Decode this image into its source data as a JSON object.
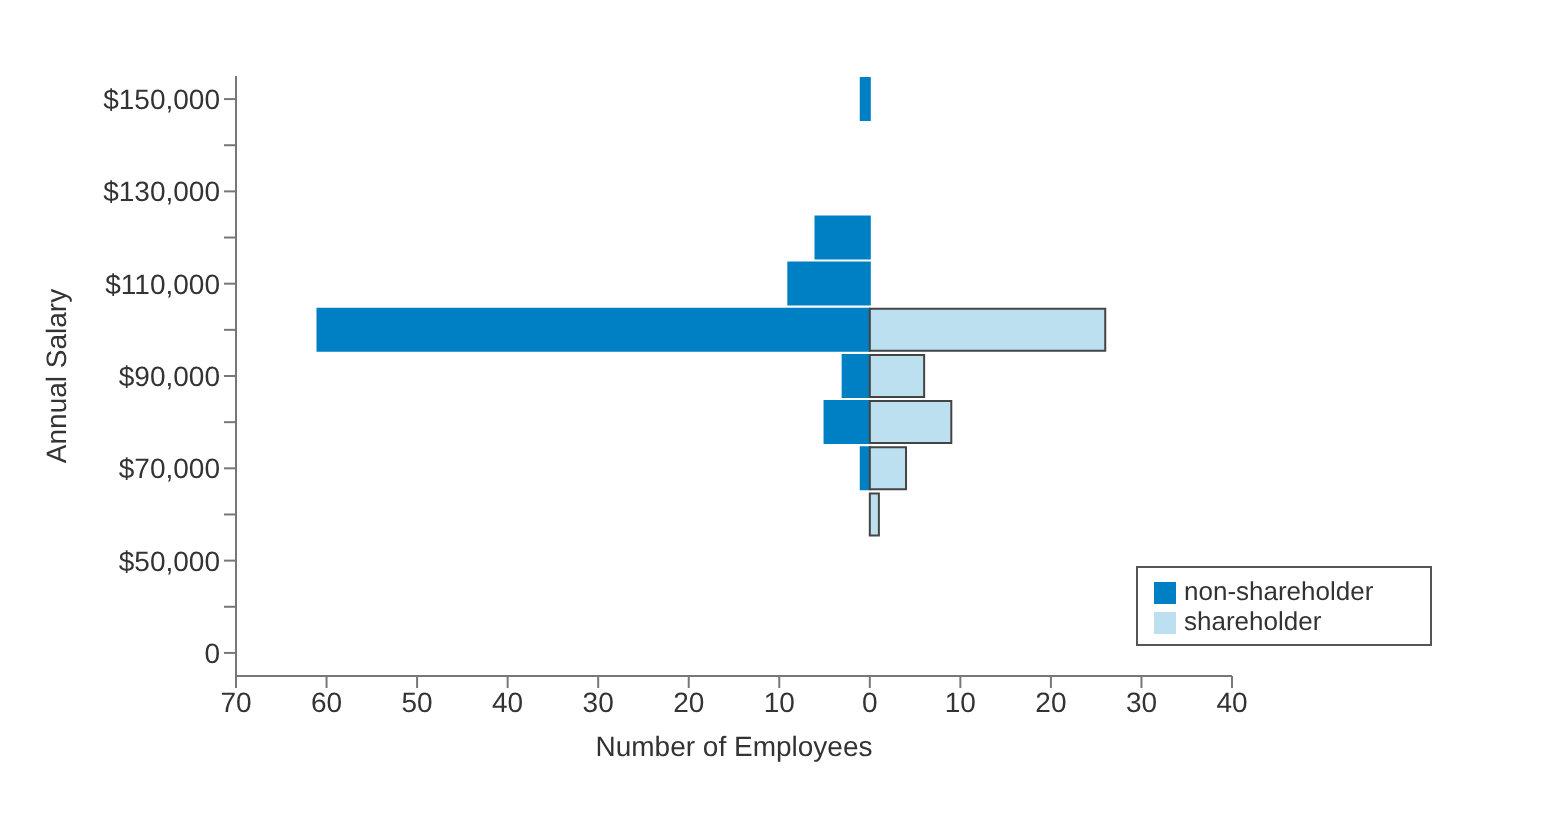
{
  "chart_data": {
    "type": "bar",
    "orientation": "horizontal",
    "stacked": true,
    "xlabel": "Number of Employees",
    "ylabel": "Annual Salary",
    "categories": [
      "$150,000",
      null,
      "$130,000",
      null,
      "$110,000",
      null,
      "$90,000",
      null,
      "$70,000",
      null,
      "$50,000",
      null,
      "0"
    ],
    "series": [
      {
        "name": "non-shareholder",
        "color": "#0080c4",
        "values": [
          -1,
          0,
          0,
          -6,
          -9,
          -61,
          -3,
          -5,
          -1,
          0,
          0,
          0,
          0
        ]
      },
      {
        "name": "shareholder",
        "color": "#bde0f0",
        "values": [
          0,
          0,
          0,
          0,
          0,
          26,
          6,
          9,
          4,
          1,
          0,
          0,
          0
        ]
      }
    ],
    "xlim": [
      -70,
      40
    ],
    "xticks": [
      {
        "value": -70,
        "label": "70"
      },
      {
        "value": -60,
        "label": "60"
      },
      {
        "value": -50,
        "label": "50"
      },
      {
        "value": -40,
        "label": "40"
      },
      {
        "value": -30,
        "label": "30"
      },
      {
        "value": -20,
        "label": "20"
      },
      {
        "value": -10,
        "label": "10"
      },
      0,
      10,
      20,
      30,
      40
    ],
    "grid": false,
    "legend": "bottom right"
  }
}
